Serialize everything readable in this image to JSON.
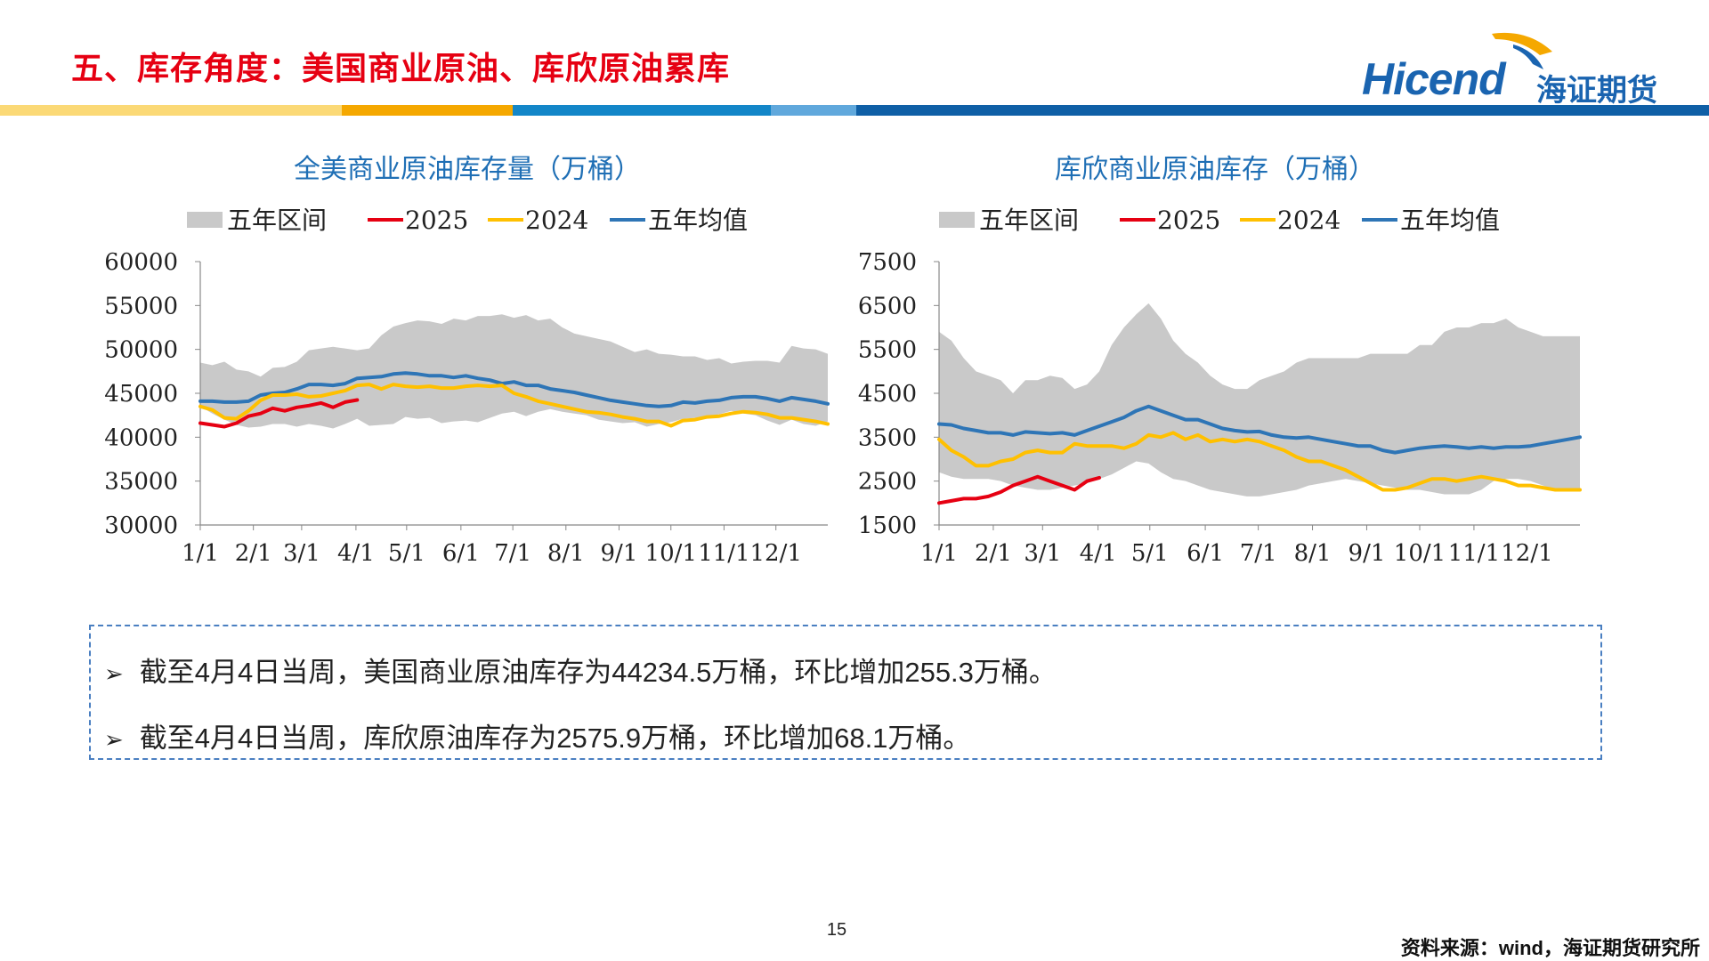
{
  "slide": {
    "title": "五、库存角度：美国商业原油、库欣原油累库",
    "page_number": "15",
    "source": "资料来源：wind，海证期货研究所"
  },
  "logo": {
    "wordmark": "Hicend",
    "cn": "海证期货"
  },
  "notes": [
    {
      "bullet": "➢",
      "text": "截至4月4日当周，美国商业原油库存为44234.5万桶，环比增加255.3万桶。"
    },
    {
      "bullet": "➢",
      "text": "截至4月4日当周，库欣原油库存为2575.9万桶，环比增加68.1万桶。"
    }
  ],
  "colors": {
    "title_red": "#e60012",
    "band": "#c9c9c9",
    "y2025": "#e60012",
    "y2024": "#ffc000",
    "avg": "#2e75b6",
    "chart_title": "#1f6fb5",
    "stripe": [
      "#fbd976",
      "#f5a800",
      "#1386c8",
      "#60a8dc",
      "#0f5fa6"
    ]
  },
  "chart_data": [
    {
      "type": "line",
      "title": "全美商业原油库存量（万桶）",
      "legend": [
        "五年区间",
        "2025",
        "2024",
        "五年均值"
      ],
      "legend_position": "top",
      "ylim": [
        30000,
        60000
      ],
      "yticks": [
        "60000",
        "55000",
        "50000",
        "45000",
        "40000",
        "35000",
        "30000"
      ],
      "xticks": [
        "1/1",
        "2/1",
        "3/1",
        "4/1",
        "5/1",
        "6/1",
        "7/1",
        "8/1",
        "9/1",
        "10/1",
        "11/1",
        "12/1"
      ],
      "x_week_range": [
        1,
        52
      ],
      "band_upper": [
        48500,
        48200,
        48600,
        47700,
        47500,
        46900,
        47900,
        48000,
        48600,
        49900,
        50100,
        50300,
        50100,
        49900,
        50100,
        51600,
        52600,
        53000,
        53300,
        53200,
        52900,
        53500,
        53300,
        53800,
        53800,
        54000,
        53600,
        53900,
        53300,
        53500,
        52500,
        51800,
        51500,
        51200,
        50900,
        50300,
        49700,
        50000,
        49500,
        49400,
        49200,
        49200,
        48800,
        49000,
        48400,
        48600,
        48700,
        48700,
        48500,
        50400,
        50100,
        50000,
        49500
      ],
      "band_lower": [
        43500,
        42700,
        42000,
        41400,
        41100,
        41200,
        41500,
        41500,
        41200,
        41500,
        41300,
        41000,
        41500,
        42100,
        41300,
        41400,
        41500,
        42300,
        42100,
        42200,
        41600,
        41800,
        41900,
        41700,
        42200,
        42700,
        42900,
        42400,
        42900,
        43200,
        42900,
        42700,
        42500,
        42000,
        41800,
        41600,
        41700,
        41200,
        41500,
        41700,
        42100,
        42200,
        42300,
        42600,
        43000,
        42700,
        42500,
        41900,
        41400,
        42000,
        41500,
        41300,
        41800
      ],
      "series": [
        {
          "name": "五年均值",
          "values": [
            44100,
            44100,
            44000,
            44000,
            44100,
            44800,
            45000,
            45100,
            45500,
            46000,
            46000,
            45900,
            46100,
            46700,
            46800,
            46900,
            47200,
            47300,
            47200,
            47000,
            47000,
            46800,
            47000,
            46700,
            46500,
            46100,
            46300,
            45900,
            45900,
            45500,
            45300,
            45100,
            44800,
            44500,
            44200,
            44000,
            43800,
            43600,
            43500,
            43600,
            44000,
            43900,
            44100,
            44200,
            44500,
            44600,
            44600,
            44400,
            44100,
            44500,
            44300,
            44100,
            43800
          ]
        },
        {
          "name": "2025",
          "values": [
            41600,
            41400,
            41200,
            41600,
            42400,
            42700,
            43300,
            43000,
            43400,
            43600,
            43900,
            43400,
            44000,
            44235
          ]
        },
        {
          "name": "2024",
          "values": [
            43500,
            43100,
            42200,
            42100,
            43000,
            44200,
            44800,
            44800,
            44900,
            44600,
            44700,
            45000,
            45300,
            45900,
            46000,
            45500,
            46000,
            45800,
            45700,
            45800,
            45600,
            45600,
            45800,
            45900,
            45800,
            45900,
            45000,
            44600,
            44100,
            43800,
            43500,
            43200,
            42900,
            42800,
            42600,
            42300,
            42100,
            41800,
            41800,
            41300,
            41900,
            42000,
            42300,
            42400,
            42700,
            42900,
            42800,
            42600,
            42200,
            42200,
            42000,
            41800,
            41500
          ]
        }
      ]
    },
    {
      "type": "line",
      "title": "库欣商业原油库存（万桶）",
      "legend": [
        "五年区间",
        "2025",
        "2024",
        "五年均值"
      ],
      "legend_position": "top",
      "ylim": [
        1500,
        7500
      ],
      "yticks": [
        "7500",
        "6500",
        "5500",
        "4500",
        "3500",
        "2500",
        "1500"
      ],
      "xticks": [
        "1/1",
        "2/1",
        "3/1",
        "4/1",
        "5/1",
        "6/1",
        "7/1",
        "8/1",
        "9/1",
        "10/1",
        "11/1",
        "12/1"
      ],
      "x_week_range": [
        1,
        52
      ],
      "band_upper": [
        5900,
        5700,
        5300,
        5000,
        4900,
        4800,
        4500,
        4800,
        4800,
        4900,
        4850,
        4600,
        4700,
        5000,
        5600,
        6000,
        6300,
        6550,
        6200,
        5700,
        5400,
        5200,
        4900,
        4700,
        4600,
        4600,
        4800,
        4900,
        5000,
        5200,
        5300,
        5300,
        5300,
        5300,
        5300,
        5400,
        5400,
        5400,
        5400,
        5600,
        5600,
        5900,
        6000,
        6000,
        6100,
        6100,
        6200,
        6000,
        5900,
        5800,
        5800,
        5800,
        5800
      ],
      "band_lower": [
        2700,
        2600,
        2550,
        2550,
        2550,
        2500,
        2400,
        2350,
        2300,
        2300,
        2350,
        2400,
        2450,
        2550,
        2650,
        2800,
        2950,
        2900,
        2700,
        2550,
        2500,
        2400,
        2300,
        2250,
        2200,
        2150,
        2150,
        2200,
        2250,
        2300,
        2400,
        2450,
        2500,
        2550,
        2500,
        2450,
        2400,
        2350,
        2300,
        2300,
        2250,
        2200,
        2200,
        2200,
        2300,
        2500,
        2550,
        2550,
        2500,
        2400,
        2300,
        2300,
        2300
      ],
      "series": [
        {
          "name": "五年均值",
          "values": [
            3800,
            3780,
            3700,
            3650,
            3600,
            3600,
            3550,
            3620,
            3600,
            3580,
            3600,
            3550,
            3650,
            3750,
            3850,
            3950,
            4100,
            4200,
            4100,
            4000,
            3900,
            3900,
            3800,
            3700,
            3650,
            3620,
            3630,
            3550,
            3500,
            3480,
            3500,
            3450,
            3400,
            3350,
            3300,
            3300,
            3200,
            3150,
            3200,
            3250,
            3280,
            3300,
            3280,
            3250,
            3280,
            3250,
            3280,
            3280,
            3300,
            3350,
            3400,
            3450,
            3500
          ]
        },
        {
          "name": "2025",
          "values": [
            2000,
            2050,
            2100,
            2100,
            2150,
            2250,
            2400,
            2500,
            2600,
            2500,
            2400,
            2300,
            2500,
            2576
          ]
        },
        {
          "name": "2024",
          "values": [
            3450,
            3200,
            3050,
            2850,
            2850,
            2950,
            3000,
            3150,
            3200,
            3150,
            3150,
            3350,
            3300,
            3300,
            3300,
            3250,
            3350,
            3550,
            3500,
            3600,
            3450,
            3550,
            3400,
            3450,
            3400,
            3450,
            3400,
            3300,
            3200,
            3050,
            2950,
            2950,
            2850,
            2750,
            2600,
            2450,
            2300,
            2300,
            2350,
            2450,
            2550,
            2550,
            2500,
            2550,
            2600,
            2550,
            2500,
            2400,
            2400,
            2350,
            2300,
            2300,
            2300
          ]
        }
      ]
    }
  ]
}
